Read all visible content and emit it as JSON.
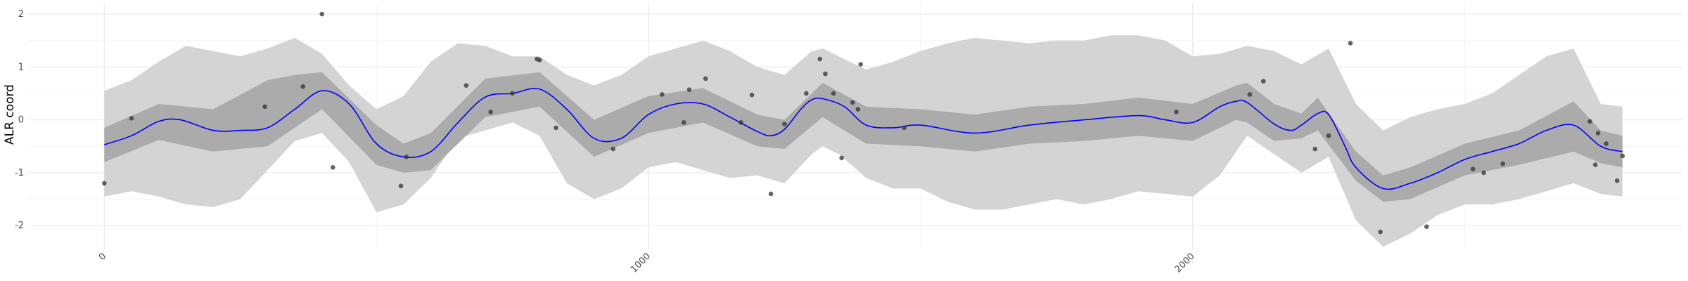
{
  "chart_data": {
    "type": "line",
    "title": "",
    "xlabel": "",
    "ylabel": "ALR coord",
    "xlim": [
      -140,
      2900
    ],
    "ylim": [
      -2.45,
      2.2
    ],
    "x_ticks": [
      0,
      1000,
      2000
    ],
    "x_tick_labels": [
      "0",
      "1000",
      "2000"
    ],
    "x_minor_ticks": [
      500,
      1500,
      2500
    ],
    "y_ticks": [
      -2,
      -1,
      0,
      1,
      2
    ],
    "y_tick_labels": [
      "-2",
      "-1",
      "0",
      "1",
      "2"
    ],
    "grid": true,
    "legend": "none",
    "colors": {
      "mean_line": "#0000ff",
      "inner_band": "#ababab",
      "outer_band": "#d4d4d4",
      "points": "#333333",
      "grid": "#ebebeb"
    },
    "mean_curve": {
      "x": [
        0,
        50,
        100,
        140,
        200,
        250,
        300,
        350,
        400,
        450,
        500,
        550,
        600,
        650,
        700,
        750,
        800,
        850,
        900,
        950,
        1000,
        1050,
        1100,
        1150,
        1200,
        1225,
        1250,
        1280,
        1300,
        1320,
        1360,
        1400,
        1450,
        1500,
        1600,
        1700,
        1800,
        1900,
        1950,
        2000,
        2050,
        2080,
        2100,
        2150,
        2180,
        2200,
        2230,
        2250,
        2280,
        2300,
        2350,
        2400,
        2450,
        2500,
        2550,
        2600,
        2650,
        2700,
        2750,
        2790
      ],
      "y": [
        -0.47,
        -0.3,
        -0.03,
        0.0,
        -0.2,
        -0.2,
        -0.15,
        0.2,
        0.55,
        0.3,
        -0.45,
        -0.7,
        -0.6,
        -0.05,
        0.43,
        0.5,
        0.58,
        0.2,
        -0.35,
        -0.35,
        0.1,
        0.3,
        0.3,
        0.05,
        -0.22,
        -0.3,
        -0.18,
        0.2,
        0.38,
        0.4,
        0.25,
        -0.1,
        -0.15,
        -0.1,
        -0.25,
        -0.1,
        0.0,
        0.08,
        0.0,
        -0.05,
        0.25,
        0.35,
        0.33,
        -0.08,
        -0.2,
        -0.1,
        0.12,
        0.1,
        -0.5,
        -0.9,
        -1.3,
        -1.2,
        -1.0,
        -0.75,
        -0.6,
        -0.45,
        -0.2,
        -0.1,
        -0.5,
        -0.6
      ]
    },
    "inner_band": {
      "x": [
        0,
        100,
        200,
        300,
        350,
        400,
        500,
        550,
        600,
        700,
        800,
        900,
        1000,
        1100,
        1200,
        1250,
        1320,
        1400,
        1500,
        1600,
        1700,
        1800,
        1900,
        2000,
        2080,
        2100,
        2150,
        2200,
        2230,
        2300,
        2350,
        2400,
        2500,
        2600,
        2700,
        2750,
        2790
      ],
      "lower": [
        -0.8,
        -0.38,
        -0.6,
        -0.5,
        -0.15,
        0.2,
        -0.85,
        -1.0,
        -0.95,
        0.05,
        0.25,
        -0.7,
        -0.25,
        -0.05,
        -0.5,
        -0.55,
        0.05,
        -0.45,
        -0.5,
        -0.6,
        -0.45,
        -0.4,
        -0.3,
        -0.4,
        0.0,
        -0.05,
        -0.4,
        -0.35,
        -0.2,
        -1.15,
        -1.55,
        -1.5,
        -1.05,
        -0.85,
        -0.6,
        -0.82,
        -0.9
      ],
      "upper": [
        -0.15,
        0.3,
        0.2,
        0.75,
        0.85,
        0.9,
        -0.1,
        -0.45,
        -0.25,
        0.78,
        0.9,
        0.0,
        0.45,
        0.6,
        0.1,
        0.0,
        0.7,
        0.25,
        0.2,
        0.1,
        0.25,
        0.3,
        0.42,
        0.3,
        0.65,
        0.7,
        0.3,
        0.12,
        0.42,
        -0.6,
        -1.05,
        -0.9,
        -0.45,
        -0.2,
        0.35,
        -0.2,
        -0.3
      ]
    },
    "outer_band": {
      "x": [
        0,
        50,
        100,
        150,
        200,
        250,
        300,
        350,
        400,
        450,
        500,
        550,
        600,
        650,
        700,
        750,
        800,
        850,
        900,
        950,
        1000,
        1050,
        1100,
        1150,
        1200,
        1250,
        1300,
        1320,
        1350,
        1400,
        1450,
        1500,
        1550,
        1600,
        1650,
        1700,
        1750,
        1800,
        1850,
        1900,
        1950,
        2000,
        2050,
        2100,
        2150,
        2200,
        2250,
        2300,
        2350,
        2400,
        2450,
        2500,
        2550,
        2600,
        2650,
        2700,
        2750,
        2790
      ],
      "lower": [
        -1.45,
        -1.35,
        -1.45,
        -1.6,
        -1.65,
        -1.5,
        -0.95,
        -0.4,
        -0.25,
        -0.8,
        -1.75,
        -1.6,
        -1.1,
        -0.35,
        -0.2,
        -0.05,
        -0.3,
        -1.2,
        -1.5,
        -1.3,
        -0.9,
        -0.8,
        -0.95,
        -1.1,
        -1.05,
        -1.2,
        -0.65,
        -0.5,
        -0.65,
        -1.1,
        -1.3,
        -1.3,
        -1.55,
        -1.7,
        -1.7,
        -1.6,
        -1.5,
        -1.6,
        -1.5,
        -1.35,
        -1.4,
        -1.45,
        -1.05,
        -0.3,
        -0.65,
        -1.0,
        -0.7,
        -1.9,
        -2.4,
        -2.15,
        -1.8,
        -1.6,
        -1.6,
        -1.5,
        -1.35,
        -1.2,
        -1.4,
        -1.45
      ],
      "upper": [
        0.55,
        0.75,
        1.1,
        1.4,
        1.3,
        1.2,
        1.35,
        1.55,
        1.25,
        0.65,
        0.2,
        0.45,
        1.1,
        1.45,
        1.4,
        1.2,
        1.2,
        0.85,
        0.65,
        0.85,
        1.2,
        1.35,
        1.5,
        1.3,
        1.0,
        0.85,
        1.3,
        1.35,
        1.2,
        0.95,
        1.1,
        1.3,
        1.45,
        1.55,
        1.5,
        1.45,
        1.5,
        1.5,
        1.6,
        1.6,
        1.5,
        1.2,
        1.25,
        1.4,
        1.3,
        1.05,
        1.35,
        0.3,
        -0.2,
        0.05,
        0.2,
        0.3,
        0.5,
        0.85,
        1.2,
        1.35,
        0.3,
        0.25
      ]
    },
    "points": {
      "x": [
        0,
        50,
        295,
        365,
        420,
        545,
        555,
        665,
        710,
        750,
        795,
        800,
        830,
        935,
        1025,
        1065,
        1075,
        1105,
        1170,
        1190,
        1225,
        1250,
        1290,
        1315,
        1325,
        1340,
        1355,
        1375,
        1385,
        1390,
        1470,
        1970,
        2105,
        2130,
        2225,
        2250,
        2290,
        2345,
        2430,
        2515,
        2535,
        2570,
        2730,
        2740,
        2745,
        2760,
        2780,
        2790
      ],
      "y": [
        -1.2,
        0.03,
        0.25,
        0.63,
        -0.9,
        -1.25,
        -0.7,
        0.65,
        0.15,
        0.5,
        1.15,
        1.13,
        -0.15,
        -0.55,
        0.48,
        -0.05,
        0.57,
        0.78,
        -0.05,
        0.47,
        -1.4,
        -0.08,
        0.5,
        1.15,
        0.87,
        0.5,
        -0.72,
        0.33,
        0.2,
        1.05,
        -0.15,
        0.15,
        0.48,
        0.73,
        -0.55,
        -0.3,
        1.45,
        -2.12,
        -2.02,
        -0.93,
        -1.0,
        -0.83,
        -0.03,
        -0.85,
        -0.25,
        -0.45,
        -1.15,
        -0.68
      ]
    },
    "extra_points": [
      {
        "x": 400,
        "y": 2.0
      }
    ]
  }
}
